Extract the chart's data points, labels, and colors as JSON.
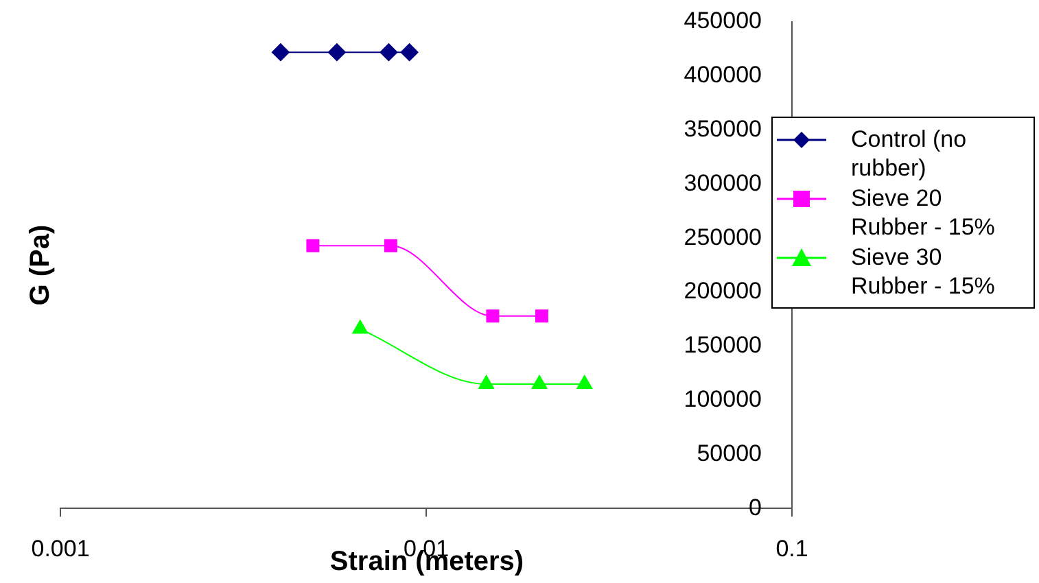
{
  "chart_data": {
    "type": "line",
    "xlabel": "Strain (meters)",
    "ylabel": "G (Pa)",
    "log": "x",
    "xlim": [
      0.001,
      0.1
    ],
    "xticks": [
      0.001,
      0.01,
      0.1
    ],
    "ylim": [
      0,
      450000
    ],
    "yticks": [
      0,
      50000,
      100000,
      150000,
      200000,
      250000,
      300000,
      350000,
      400000,
      450000
    ],
    "grid": false,
    "legend": "right",
    "series": [
      {
        "name": "Control (no rubber)",
        "color": "#000080",
        "marker": "diamond",
        "x": [
          0.004,
          0.0057,
          0.0079,
          0.009
        ],
        "values": [
          422000,
          422000,
          422000,
          422000
        ]
      },
      {
        "name": "Sieve 20 Rubber - 15%",
        "color": "#ff00ff",
        "marker": "square",
        "x": [
          0.0049,
          0.008,
          0.0152,
          0.0207
        ],
        "values": [
          243000,
          243000,
          178000,
          178000
        ]
      },
      {
        "name": "Sieve 30 Rubber - 15%",
        "color": "#00ff00",
        "marker": "triangle",
        "x": [
          0.0066,
          0.0146,
          0.0204,
          0.0271
        ],
        "values": [
          166000,
          115000,
          115000,
          115000
        ]
      }
    ]
  }
}
